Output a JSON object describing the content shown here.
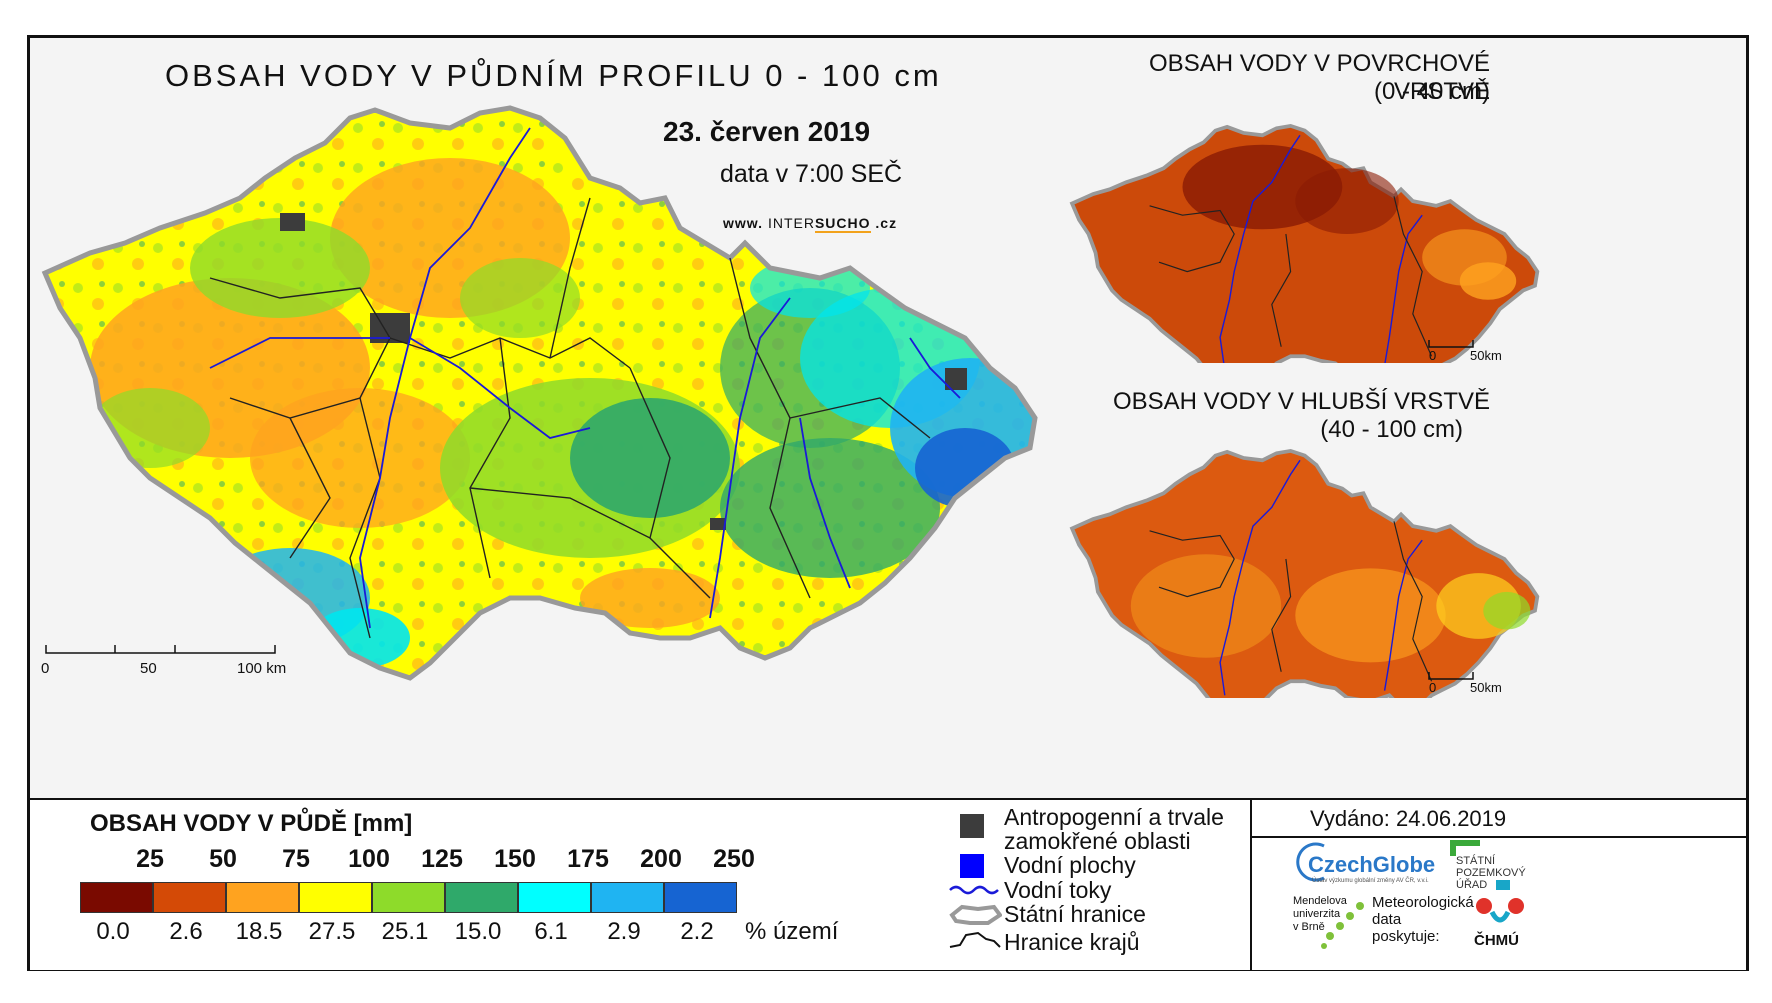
{
  "main_map": {
    "title": "OBSAH VODY V PŮDNÍM PROFILU 0 - 100 cm",
    "date": "23. červen 2019",
    "time": "data v 7:00 SEČ",
    "web_prefix": "www.",
    "web_brand_a": "INTER",
    "web_brand_b": "SUCHO",
    "web_suffix": ".cz",
    "scale": [
      "0",
      "50",
      "100 km"
    ]
  },
  "surface_map": {
    "title_line1": "OBSAH VODY V POVRCHOVÉ VRSTVĚ",
    "title_line2": "(0 - 40 cm)",
    "scale": [
      "0",
      "50km"
    ]
  },
  "deep_map": {
    "title_line1": "OBSAH VODY V HLUBŠÍ VRSTVĚ",
    "title_line2": "(40 - 100 cm)",
    "scale": [
      "0",
      "50km"
    ]
  },
  "legend": {
    "title": "OBSAH VODY V PŮDĚ [mm]",
    "thresholds": [
      "25",
      "50",
      "75",
      "100",
      "125",
      "150",
      "175",
      "200",
      "250"
    ],
    "classes": [
      {
        "color": "#7a0a00",
        "percent": "0.0"
      },
      {
        "color": "#d44a06",
        "percent": "2.6"
      },
      {
        "color": "#ffa31f",
        "percent": "18.5"
      },
      {
        "color": "#ffff00",
        "percent": "27.5"
      },
      {
        "color": "#8edb2a",
        "percent": "25.1"
      },
      {
        "color": "#2fa96a",
        "percent": "15.0"
      },
      {
        "color": "#00ffff",
        "percent": "6.1"
      },
      {
        "color": "#1fb4f2",
        "percent": "2.9"
      },
      {
        "color": "#1664d2",
        "percent": "2.2"
      }
    ],
    "percent_unit": "% území"
  },
  "symbols": {
    "anthropogenic_line1": "Antropogenní a trvale",
    "anthropogenic_line2": "zamokřené oblasti",
    "water_bodies": "Vodní plochy",
    "rivers": "Vodní toky",
    "state_border": "Státní hranice",
    "region_border": "Hranice krajů"
  },
  "issued": "Vydáno: 24.06.2019",
  "credits": {
    "czechglobe": "CzechGlobe",
    "czechglobe_sub": "Ústav výzkumu globální změny AV ČR, v.v.i.",
    "spu_line1": "STÁTNÍ",
    "spu_line2": "POZEMKOVÝ",
    "spu_line3": "ÚŘAD",
    "mendel_line1": "Mendelova",
    "mendel_line2": "univerzita",
    "mendel_line3": "v Brně",
    "meteo_line1": "Meteorologická",
    "meteo_line2": "data",
    "meteo_line3": "poskytuje:",
    "chmu": "ČHMÚ"
  },
  "colors": {
    "anthropogenic": "#3c3c3c",
    "water": "#0000ff",
    "river": "#1a1ad8"
  }
}
